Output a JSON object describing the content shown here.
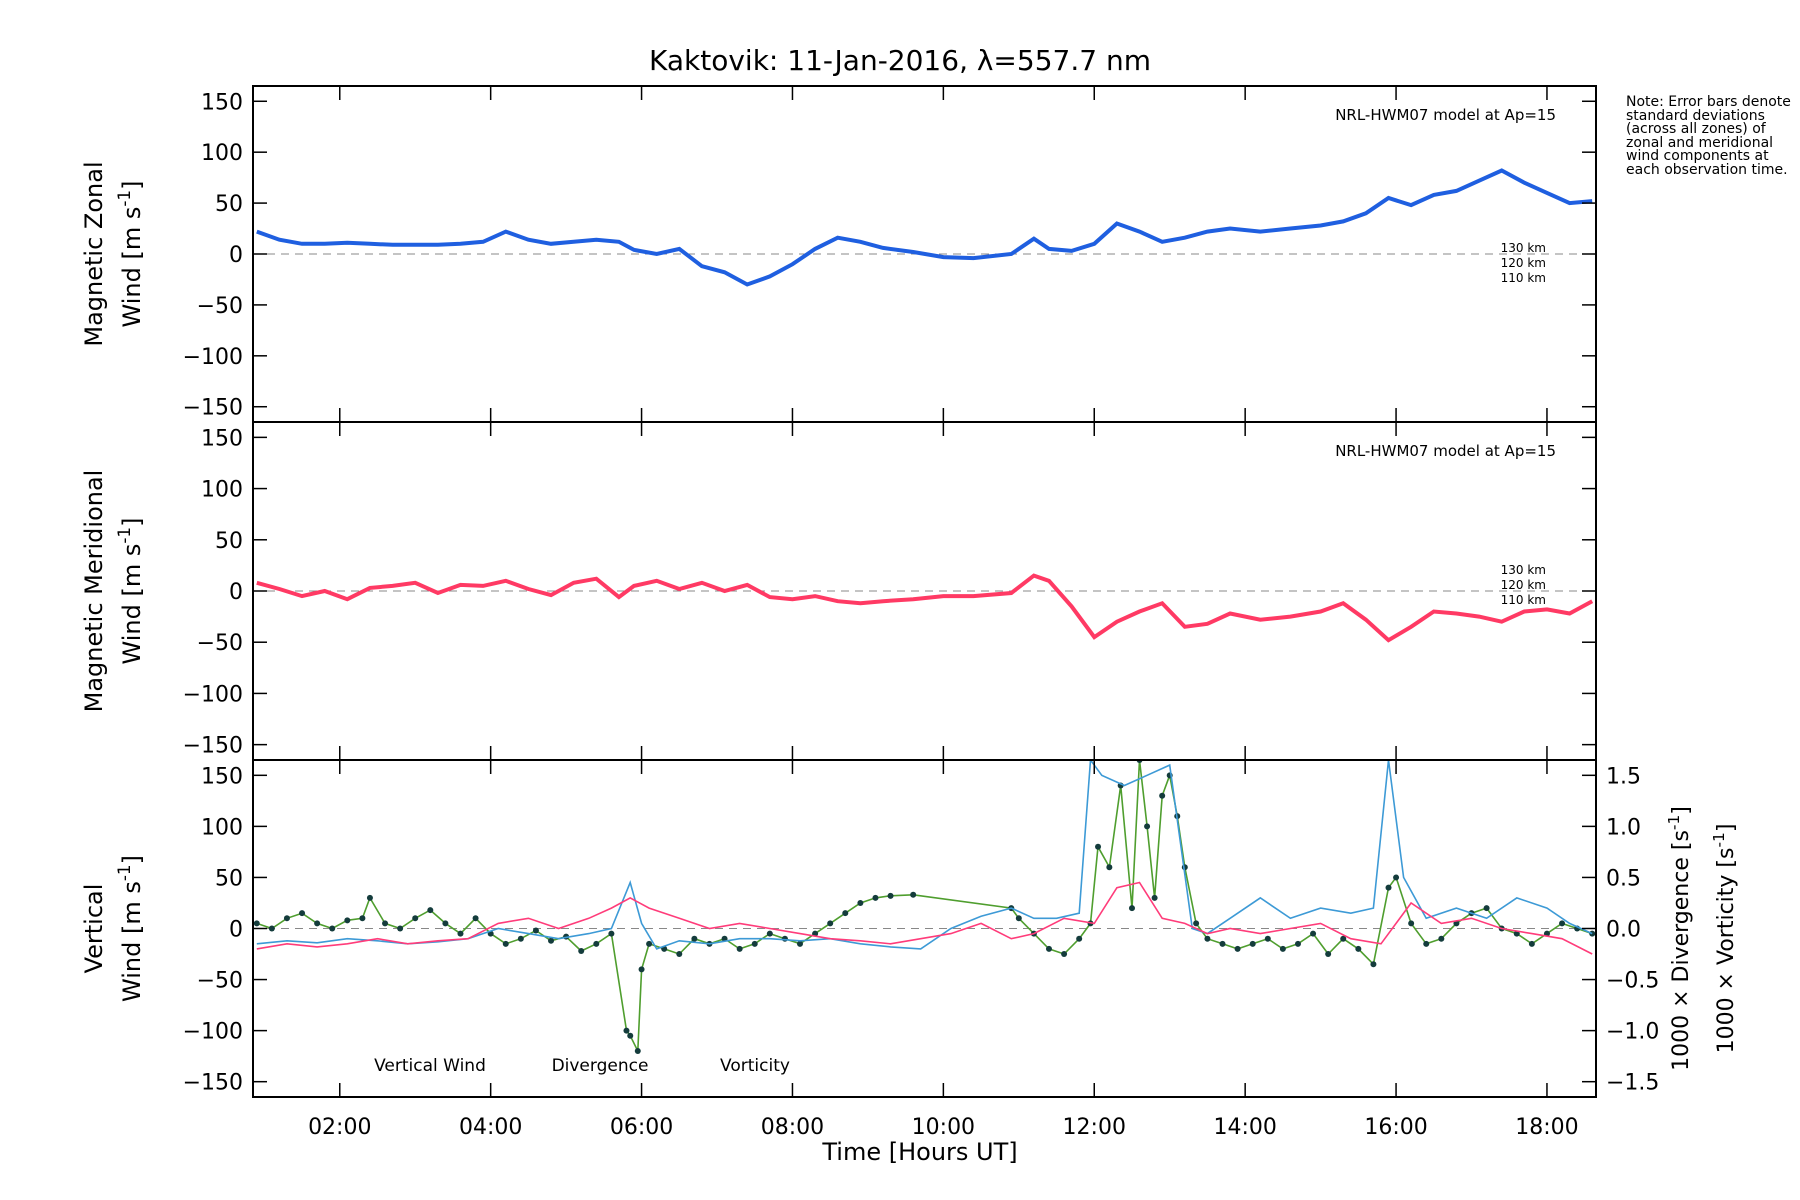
{
  "chart_data": {
    "type": "line",
    "title": "Kaktovik: 11-Jan-2016, λ=557.7 nm",
    "xlabel": "Time [Hours UT]",
    "xlim": [
      0.85,
      18.65
    ],
    "x_ticks": [
      2,
      4,
      6,
      8,
      10,
      12,
      14,
      16,
      18
    ],
    "x_tick_labels": [
      "02:00",
      "04:00",
      "06:00",
      "08:00",
      "10:00",
      "12:00",
      "14:00",
      "16:00",
      "18:00"
    ],
    "y_ticks": [
      -150,
      -100,
      -50,
      0,
      50,
      100,
      150
    ],
    "note": "Note: Error bars denote standard deviations (across all zones) of zonal and meridional wind components at each observation time.",
    "panels": [
      {
        "id": "zonal",
        "ylabel_line1": "Magnetic Zonal",
        "ylabel_line2": "Wind [m s",
        "ylabel_sup": "-1",
        "ylabel_end": "]",
        "ylim": [
          -165,
          165
        ],
        "model_label": "NRL-HWM07 model at Ap=15",
        "model_altitudes": [
          "130 km",
          "120 km",
          "110 km"
        ],
        "series": [
          {
            "name": "zonal wind",
            "color": "#1f5fe0",
            "x": [
              0.9,
              1.2,
              1.5,
              1.8,
              2.1,
              2.4,
              2.7,
              3.0,
              3.3,
              3.6,
              3.9,
              4.2,
              4.5,
              4.8,
              5.1,
              5.4,
              5.7,
              5.9,
              6.2,
              6.5,
              6.8,
              7.1,
              7.4,
              7.7,
              8.0,
              8.3,
              8.6,
              8.9,
              9.2,
              9.6,
              10.0,
              10.4,
              10.9,
              11.2,
              11.4,
              11.7,
              12.0,
              12.3,
              12.6,
              12.9,
              13.2,
              13.5,
              13.8,
              14.2,
              14.6,
              15.0,
              15.3,
              15.6,
              15.9,
              16.2,
              16.5,
              16.8,
              17.1,
              17.4,
              17.7,
              18.0,
              18.3,
              18.6
            ],
            "y": [
              22,
              14,
              10,
              10,
              11,
              10,
              9,
              9,
              9,
              10,
              12,
              22,
              14,
              10,
              12,
              14,
              12,
              4,
              0,
              5,
              -12,
              -18,
              -30,
              -22,
              -10,
              5,
              16,
              12,
              6,
              2,
              -3,
              -4,
              0,
              15,
              5,
              3,
              10,
              30,
              22,
              12,
              16,
              22,
              25,
              22,
              25,
              28,
              32,
              40,
              55,
              48,
              58,
              62,
              72,
              82,
              70,
              60,
              50,
              52
            ]
          }
        ]
      },
      {
        "id": "meridional",
        "ylabel_line1": "Magnetic Meridional",
        "ylabel_line2": "Wind [m s",
        "ylabel_sup": "-1",
        "ylabel_end": "]",
        "ylim": [
          -165,
          165
        ],
        "model_label": "NRL-HWM07 model at Ap=15",
        "model_altitudes": [
          "130 km",
          "120 km",
          "110 km"
        ],
        "series": [
          {
            "name": "meridional wind",
            "color": "#ff3a64",
            "x": [
              0.9,
              1.2,
              1.5,
              1.8,
              2.1,
              2.4,
              2.7,
              3.0,
              3.3,
              3.6,
              3.9,
              4.2,
              4.5,
              4.8,
              5.1,
              5.4,
              5.7,
              5.9,
              6.2,
              6.5,
              6.8,
              7.1,
              7.4,
              7.7,
              8.0,
              8.3,
              8.6,
              8.9,
              9.2,
              9.6,
              10.0,
              10.4,
              10.9,
              11.2,
              11.4,
              11.7,
              12.0,
              12.3,
              12.6,
              12.9,
              13.2,
              13.5,
              13.8,
              14.2,
              14.6,
              15.0,
              15.3,
              15.6,
              15.9,
              16.2,
              16.5,
              16.8,
              17.1,
              17.4,
              17.7,
              18.0,
              18.3,
              18.6
            ],
            "y": [
              8,
              2,
              -5,
              0,
              -8,
              3,
              5,
              8,
              -2,
              6,
              5,
              10,
              2,
              -4,
              8,
              12,
              -6,
              5,
              10,
              2,
              8,
              0,
              6,
              -6,
              -8,
              -5,
              -10,
              -12,
              -10,
              -8,
              -5,
              -5,
              -2,
              15,
              10,
              -15,
              -45,
              -30,
              -20,
              -12,
              -35,
              -32,
              -22,
              -28,
              -25,
              -20,
              -12,
              -28,
              -48,
              -35,
              -20,
              -22,
              -25,
              -30,
              -20,
              -18,
              -22,
              -10
            ]
          }
        ]
      },
      {
        "id": "vertical",
        "ylabel_line1": "Vertical",
        "ylabel_line2": "Wind [m s",
        "ylabel_sup": "-1",
        "ylabel_end": "]",
        "ylim": [
          -165,
          165
        ],
        "y2lim": [
          -1.65,
          1.65
        ],
        "y2_ticks": [
          -1.5,
          -1.0,
          -0.5,
          0.0,
          0.5,
          1.0,
          1.5
        ],
        "y2_tick_labels": [
          "−1.5",
          "−1.0",
          "−0.5",
          "0.0",
          "0.5",
          "1.0",
          "1.5"
        ],
        "y2label_div": "1000 × Divergence [s",
        "y2label_vor": "1000 × Vorticity [s",
        "y2label_sup": "-1",
        "y2label_end": "]",
        "legend": [
          {
            "label": "Vertical Wind",
            "color": "#4f9e2e"
          },
          {
            "label": "Divergence",
            "color": "#3d9ad6"
          },
          {
            "label": "Vorticity",
            "color": "#ff3c7a"
          }
        ],
        "series": [
          {
            "name": "Vertical Wind",
            "axis": "left",
            "color": "#4f9e2e",
            "x": [
              0.9,
              1.1,
              1.3,
              1.5,
              1.7,
              1.9,
              2.1,
              2.3,
              2.4,
              2.6,
              2.8,
              3.0,
              3.2,
              3.4,
              3.6,
              3.8,
              4.0,
              4.2,
              4.4,
              4.6,
              4.8,
              5.0,
              5.2,
              5.4,
              5.6,
              5.8,
              5.85,
              5.95,
              6.0,
              6.1,
              6.3,
              6.5,
              6.7,
              6.9,
              7.1,
              7.3,
              7.5,
              7.7,
              7.9,
              8.1,
              8.3,
              8.5,
              8.7,
              8.9,
              9.1,
              9.3,
              9.6,
              10.9,
              11.0,
              11.2,
              11.4,
              11.6,
              11.8,
              11.95,
              12.05,
              12.2,
              12.35,
              12.5,
              12.6,
              12.7,
              12.8,
              12.9,
              13.0,
              13.1,
              13.2,
              13.35,
              13.5,
              13.7,
              13.9,
              14.1,
              14.3,
              14.5,
              14.7,
              14.9,
              15.1,
              15.3,
              15.5,
              15.7,
              15.9,
              16.0,
              16.2,
              16.4,
              16.6,
              16.8,
              17.0,
              17.2,
              17.4,
              17.6,
              17.8,
              18.0,
              18.2,
              18.4,
              18.6
            ],
            "y": [
              5,
              0,
              10,
              15,
              5,
              0,
              8,
              10,
              30,
              5,
              0,
              10,
              18,
              5,
              -5,
              10,
              -5,
              -15,
              -10,
              -2,
              -12,
              -8,
              -22,
              -15,
              -5,
              -100,
              -105,
              -120,
              -40,
              -15,
              -20,
              -25,
              -10,
              -15,
              -10,
              -20,
              -15,
              -5,
              -10,
              -15,
              -5,
              5,
              15,
              25,
              30,
              32,
              33,
              20,
              10,
              -5,
              -20,
              -25,
              -10,
              5,
              80,
              60,
              140,
              20,
              165,
              100,
              30,
              130,
              150,
              110,
              60,
              5,
              -10,
              -15,
              -20,
              -15,
              -10,
              -20,
              -15,
              -5,
              -25,
              -10,
              -20,
              -35,
              40,
              50,
              5,
              -15,
              -10,
              5,
              15,
              20,
              0,
              -5,
              -15,
              -5,
              5,
              0,
              -5
            ]
          },
          {
            "name": "Divergence",
            "axis": "right",
            "color": "#3d9ad6",
            "x": [
              0.9,
              1.3,
              1.7,
              2.1,
              2.5,
              2.9,
              3.3,
              3.7,
              4.1,
              4.5,
              4.9,
              5.3,
              5.6,
              5.85,
              6.0,
              6.2,
              6.5,
              6.9,
              7.3,
              7.7,
              8.1,
              8.5,
              8.9,
              9.3,
              9.7,
              10.1,
              10.5,
              10.9,
              11.2,
              11.5,
              11.8,
              11.95,
              12.1,
              12.4,
              12.7,
              13.0,
              13.3,
              13.5,
              13.8,
              14.2,
              14.6,
              15.0,
              15.4,
              15.7,
              15.9,
              16.1,
              16.4,
              16.8,
              17.2,
              17.6,
              18.0,
              18.3,
              18.6
            ],
            "y": [
              -0.15,
              -0.12,
              -0.14,
              -0.1,
              -0.12,
              -0.15,
              -0.13,
              -0.1,
              0.0,
              -0.05,
              -0.1,
              -0.05,
              0.0,
              0.45,
              0.05,
              -0.2,
              -0.12,
              -0.15,
              -0.1,
              -0.1,
              -0.12,
              -0.1,
              -0.15,
              -0.18,
              -0.2,
              0.0,
              0.12,
              0.2,
              0.1,
              0.1,
              0.15,
              1.65,
              1.5,
              1.4,
              1.5,
              1.6,
              0.0,
              -0.05,
              0.1,
              0.3,
              0.1,
              0.2,
              0.15,
              0.2,
              1.65,
              0.5,
              0.1,
              0.2,
              0.1,
              0.3,
              0.2,
              0.05,
              -0.05
            ]
          },
          {
            "name": "Vorticity",
            "axis": "right",
            "color": "#ff3c7a",
            "x": [
              0.9,
              1.3,
              1.7,
              2.1,
              2.5,
              2.9,
              3.3,
              3.7,
              4.1,
              4.5,
              4.9,
              5.3,
              5.6,
              5.85,
              6.1,
              6.5,
              6.9,
              7.3,
              7.7,
              8.1,
              8.5,
              8.9,
              9.3,
              9.7,
              10.1,
              10.5,
              10.9,
              11.2,
              11.6,
              12.0,
              12.3,
              12.6,
              12.9,
              13.2,
              13.5,
              13.8,
              14.2,
              14.6,
              15.0,
              15.4,
              15.8,
              16.2,
              16.6,
              17.0,
              17.4,
              17.8,
              18.2,
              18.6
            ],
            "y": [
              -0.2,
              -0.15,
              -0.18,
              -0.15,
              -0.1,
              -0.15,
              -0.12,
              -0.1,
              0.05,
              0.1,
              0.0,
              0.1,
              0.2,
              0.3,
              0.2,
              0.1,
              0.0,
              0.05,
              0.0,
              -0.05,
              -0.1,
              -0.12,
              -0.15,
              -0.1,
              -0.05,
              0.05,
              -0.1,
              -0.05,
              0.1,
              0.05,
              0.4,
              0.45,
              0.1,
              0.05,
              -0.05,
              0.0,
              -0.05,
              0.0,
              0.05,
              -0.1,
              -0.15,
              0.25,
              0.05,
              0.1,
              0.0,
              -0.05,
              -0.1,
              -0.25
            ]
          }
        ]
      }
    ]
  }
}
